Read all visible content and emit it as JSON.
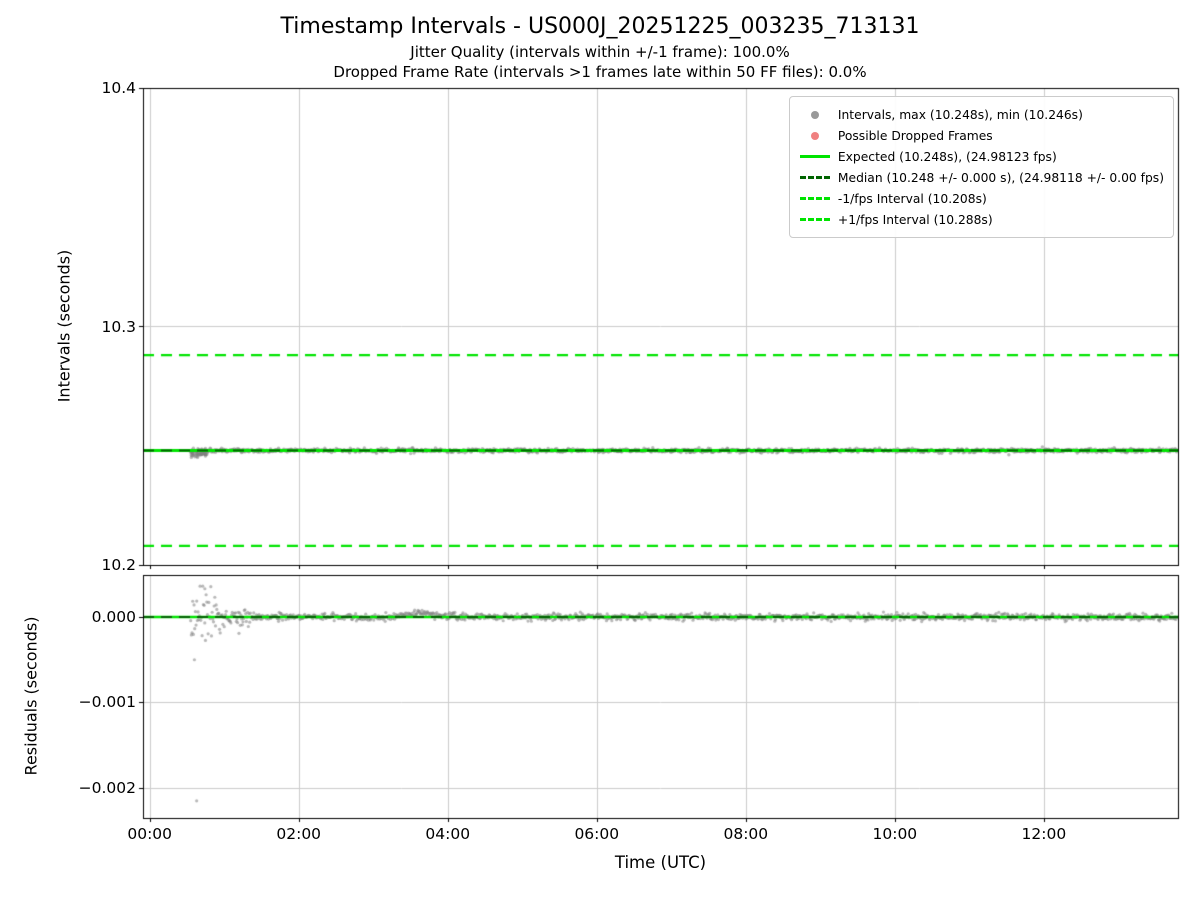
{
  "title": "Timestamp Intervals - US000J_20251225_003235_713131",
  "subtitle1": "Jitter Quality (intervals within +/-1 frame): 100.0%",
  "subtitle2": "Dropped Frame Rate (intervals >1 frames late within 50 FF files): 0.0%",
  "legend": {
    "entries": [
      {
        "label": "Intervals, max (10.248s), min (10.246s)",
        "marker": "dot",
        "color": "#999999"
      },
      {
        "label": "Possible Dropped Frames",
        "marker": "dot",
        "color": "#f08080"
      },
      {
        "label": "Expected (10.248s), (24.98123 fps)",
        "marker": "line-solid",
        "color": "#00e400"
      },
      {
        "label": "Median (10.248 +/- 0.000 s), (24.98118 +/- 0.00 fps)",
        "marker": "line-dashed",
        "color": "#006400"
      },
      {
        "label": "-1/fps Interval (10.208s)",
        "marker": "line-dashed",
        "color": "#00e400"
      },
      {
        "label": "+1/fps Interval (10.288s)",
        "marker": "line-dashed",
        "color": "#00e400"
      }
    ]
  },
  "chart_data": [
    {
      "type": "scatter",
      "name": "intervals-vs-time",
      "ylabel": "Intervals (seconds)",
      "ylim": [
        10.2,
        10.4
      ],
      "yticks": [
        10.2,
        10.3,
        10.4
      ],
      "ytick_labels": [
        "10.2",
        "10.3",
        "10.4"
      ],
      "xlim_hours": [
        -0.09,
        13.8
      ],
      "xticks_hours": [
        0,
        2,
        4,
        6,
        8,
        10,
        12
      ],
      "grid": true,
      "lines": [
        {
          "name": "expected",
          "value": 10.248,
          "style": "solid",
          "color": "#00e400",
          "width": 3
        },
        {
          "name": "median",
          "value": 10.248,
          "style": "dashed",
          "color": "#006400",
          "width": 2.2
        },
        {
          "name": "minus-1fps",
          "value": 10.208,
          "style": "dashed",
          "color": "#00e400",
          "width": 2.4
        },
        {
          "name": "plus-1fps",
          "value": 10.288,
          "style": "dashed",
          "color": "#00e400",
          "width": 2.4
        }
      ],
      "points": {
        "color": "#808080",
        "alpha": 0.55,
        "radius": 1.7,
        "start_hour": 0.55,
        "end_hour": 13.79,
        "step_hours": 0.009,
        "center": 10.248,
        "sigma": 0.0004,
        "sigma_early": 0.0007,
        "early_until_hour": 0.9,
        "max": 10.248,
        "min": 10.246,
        "early_cluster": {
          "start": 0.55,
          "end": 0.78,
          "center": 10.2465,
          "sigma": 0.0009,
          "count": 45
        }
      }
    },
    {
      "type": "scatter",
      "name": "residuals-vs-time",
      "ylabel": "Residuals (seconds)",
      "xlabel": "Time (UTC)",
      "ylim": [
        -0.002351,
        0.000491
      ],
      "yticks": [
        0,
        -0.001,
        -0.002
      ],
      "ytick_labels": [
        "0.000",
        "−0.001",
        "−0.002"
      ],
      "xlim_hours": [
        -0.09,
        13.8
      ],
      "xticks_hours": [
        0,
        2,
        4,
        6,
        8,
        10,
        12
      ],
      "xtick_labels": [
        "00:00",
        "02:00",
        "04:00",
        "06:00",
        "08:00",
        "10:00",
        "12:00"
      ],
      "grid": true,
      "lines": [
        {
          "name": "zero-expected",
          "value": 0,
          "style": "solid",
          "color": "#00e400",
          "width": 2.5
        },
        {
          "name": "zero-median",
          "value": 0,
          "style": "dashed",
          "color": "#006400",
          "width": 2
        }
      ],
      "points": {
        "color": "#808080",
        "alpha": 0.55,
        "radius": 1.6,
        "start_hour": 0.55,
        "end_hour": 13.79,
        "step_hours": 0.009,
        "center": 0,
        "sigma": 2e-05,
        "sigma_early": 0.00015,
        "early_until_hour": 0.95,
        "sigma_mid": 6e-05,
        "mid_until_hour": 1.4,
        "bump": {
          "center_hour": 3.65,
          "width_hours": 0.22,
          "amplitude": 5e-05
        },
        "outliers": [
          [
            0.74,
            0.00033
          ],
          [
            0.6,
            -0.0005
          ],
          [
            0.63,
            -0.00215
          ]
        ]
      }
    }
  ]
}
